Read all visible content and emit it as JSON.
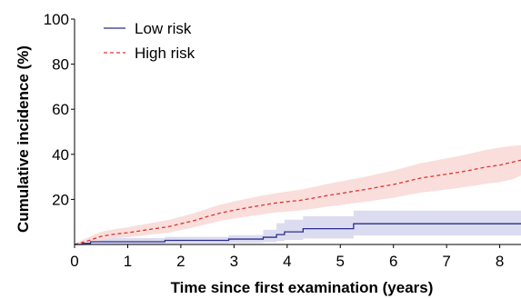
{
  "chart_data": {
    "type": "line",
    "title": "",
    "xlabel": "Time since first examination (years)",
    "ylabel": "Cumulative incidence (%)",
    "xlim": [
      0,
      8.4
    ],
    "ylim": [
      0,
      100
    ],
    "x_ticks": [
      0,
      1,
      2,
      3,
      4,
      5,
      6,
      7,
      8
    ],
    "y_ticks": [
      20,
      40,
      60,
      80,
      100
    ],
    "grid": false,
    "legend_position": "top-left",
    "step": true,
    "series": [
      {
        "name": "Low risk",
        "color": "#2b2e8c",
        "band_color": "#dcdcf0",
        "line_style": "solid",
        "points": [
          [
            0,
            0
          ],
          [
            0.15,
            0
          ],
          [
            0.15,
            0.5
          ],
          [
            0.3,
            0.5
          ],
          [
            0.3,
            1.2
          ],
          [
            1.7,
            1.2
          ],
          [
            1.7,
            1.8
          ],
          [
            2.9,
            1.8
          ],
          [
            2.9,
            2.4
          ],
          [
            3.55,
            2.4
          ],
          [
            3.55,
            3.2
          ],
          [
            3.8,
            3.2
          ],
          [
            3.8,
            4.4
          ],
          [
            3.95,
            4.4
          ],
          [
            3.95,
            5.6
          ],
          [
            4.3,
            5.6
          ],
          [
            4.3,
            7.0
          ],
          [
            5.25,
            7.0
          ],
          [
            5.25,
            9.2
          ],
          [
            8.4,
            9.2
          ]
        ],
        "upper": [
          [
            0,
            0.5
          ],
          [
            0.15,
            0.5
          ],
          [
            0.15,
            1.5
          ],
          [
            0.3,
            1.5
          ],
          [
            0.3,
            2.8
          ],
          [
            1.7,
            2.8
          ],
          [
            1.7,
            3.4
          ],
          [
            2.9,
            3.4
          ],
          [
            2.9,
            4.2
          ],
          [
            3.55,
            4.2
          ],
          [
            3.55,
            6.5
          ],
          [
            3.8,
            6.5
          ],
          [
            3.8,
            9.5
          ],
          [
            3.95,
            9.5
          ],
          [
            3.95,
            11.0
          ],
          [
            4.3,
            11.0
          ],
          [
            4.3,
            12.5
          ],
          [
            5.25,
            12.5
          ],
          [
            5.25,
            15.0
          ],
          [
            8.4,
            15.0
          ]
        ],
        "lower": [
          [
            0,
            0
          ],
          [
            0.15,
            0
          ],
          [
            0.15,
            0
          ],
          [
            0.3,
            0
          ],
          [
            0.3,
            0.2
          ],
          [
            1.7,
            0.2
          ],
          [
            1.7,
            0.5
          ],
          [
            2.9,
            0.5
          ],
          [
            2.9,
            0.7
          ],
          [
            3.55,
            0.7
          ],
          [
            3.55,
            1.0
          ],
          [
            3.8,
            1.0
          ],
          [
            3.8,
            1.5
          ],
          [
            3.95,
            1.5
          ],
          [
            3.95,
            2.0
          ],
          [
            4.3,
            2.0
          ],
          [
            4.3,
            2.6
          ],
          [
            5.25,
            2.6
          ],
          [
            5.25,
            4.0
          ],
          [
            8.4,
            4.0
          ]
        ]
      },
      {
        "name": "High risk",
        "color": "#e0342e",
        "band_color": "#f9dedc",
        "line_style": "dashed",
        "points": [
          [
            0,
            0
          ],
          [
            0.25,
            1.6
          ],
          [
            0.5,
            3.6
          ],
          [
            0.75,
            4.6
          ],
          [
            1,
            5.2
          ],
          [
            1.25,
            6.1
          ],
          [
            1.5,
            7.0
          ],
          [
            1.75,
            7.8
          ],
          [
            2,
            9.2
          ],
          [
            2.25,
            10.6
          ],
          [
            2.5,
            12.4
          ],
          [
            2.75,
            14.0
          ],
          [
            3,
            15.2
          ],
          [
            3.25,
            16.3
          ],
          [
            3.5,
            17.3
          ],
          [
            3.75,
            18.3
          ],
          [
            4,
            19.0
          ],
          [
            4.25,
            19.6
          ],
          [
            4.5,
            20.6
          ],
          [
            4.75,
            21.7
          ],
          [
            5,
            22.6
          ],
          [
            5.25,
            23.6
          ],
          [
            5.5,
            24.5
          ],
          [
            5.75,
            25.6
          ],
          [
            6,
            26.6
          ],
          [
            6.25,
            28.0
          ],
          [
            6.5,
            29.4
          ],
          [
            6.75,
            30.3
          ],
          [
            7,
            31.2
          ],
          [
            7.25,
            32.1
          ],
          [
            7.5,
            33.2
          ],
          [
            7.75,
            34.4
          ],
          [
            8,
            35.2
          ],
          [
            8.25,
            36.6
          ],
          [
            8.4,
            37.4
          ]
        ],
        "upper": [
          [
            0,
            0.5
          ],
          [
            0.25,
            3.0
          ],
          [
            0.5,
            5.6
          ],
          [
            0.75,
            6.8
          ],
          [
            1,
            7.6
          ],
          [
            1.25,
            8.7
          ],
          [
            1.5,
            9.8
          ],
          [
            1.75,
            10.8
          ],
          [
            2,
            12.3
          ],
          [
            2.25,
            13.9
          ],
          [
            2.5,
            15.9
          ],
          [
            2.75,
            17.7
          ],
          [
            3,
            19.1
          ],
          [
            3.25,
            20.3
          ],
          [
            3.5,
            21.5
          ],
          [
            3.75,
            22.6
          ],
          [
            4,
            23.5
          ],
          [
            4.25,
            24.3
          ],
          [
            4.5,
            25.5
          ],
          [
            4.75,
            26.8
          ],
          [
            5,
            27.9
          ],
          [
            5.25,
            29.1
          ],
          [
            5.5,
            30.2
          ],
          [
            5.75,
            31.5
          ],
          [
            6,
            32.8
          ],
          [
            6.25,
            34.4
          ],
          [
            6.5,
            36.0
          ],
          [
            6.75,
            37.1
          ],
          [
            7,
            38.2
          ],
          [
            7.25,
            39.3
          ],
          [
            7.5,
            40.6
          ],
          [
            7.75,
            42.0
          ],
          [
            8,
            43.0
          ],
          [
            8.25,
            43.8
          ],
          [
            8.4,
            44.0
          ]
        ],
        "lower": [
          [
            0,
            0
          ],
          [
            0.25,
            0.6
          ],
          [
            0.5,
            2.0
          ],
          [
            0.75,
            2.8
          ],
          [
            1,
            3.2
          ],
          [
            1.25,
            3.9
          ],
          [
            1.5,
            4.6
          ],
          [
            1.75,
            5.2
          ],
          [
            2,
            6.4
          ],
          [
            2.25,
            7.6
          ],
          [
            2.5,
            9.1
          ],
          [
            2.75,
            10.5
          ],
          [
            3,
            11.5
          ],
          [
            3.25,
            12.4
          ],
          [
            3.5,
            13.2
          ],
          [
            3.75,
            14.1
          ],
          [
            4,
            14.6
          ],
          [
            4.25,
            15.1
          ],
          [
            4.5,
            15.9
          ],
          [
            4.75,
            16.8
          ],
          [
            5,
            17.5
          ],
          [
            5.25,
            18.3
          ],
          [
            5.5,
            19.0
          ],
          [
            5.75,
            19.9
          ],
          [
            6,
            20.7
          ],
          [
            6.25,
            21.8
          ],
          [
            6.5,
            23.0
          ],
          [
            6.75,
            23.7
          ],
          [
            7,
            24.4
          ],
          [
            7.25,
            25.1
          ],
          [
            7.5,
            26.0
          ],
          [
            7.75,
            27.0
          ],
          [
            8,
            27.6
          ],
          [
            8.25,
            29.0
          ],
          [
            8.4,
            30.6
          ]
        ]
      }
    ]
  }
}
